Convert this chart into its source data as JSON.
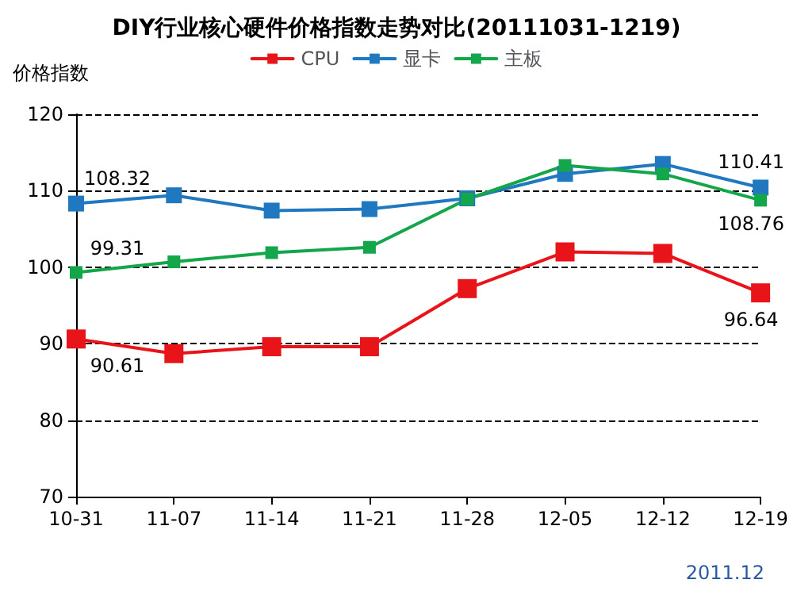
{
  "chart_data": {
    "type": "line",
    "title": "DIY行业核心硬件价格指数走势对比(20111031-1219)",
    "ylabel": "价格指数",
    "categories": [
      "10-31",
      "11-07",
      "11-14",
      "11-21",
      "11-28",
      "12-05",
      "12-12",
      "12-19"
    ],
    "series": [
      {
        "name": "CPU",
        "color": "#e8141a",
        "values": [
          90.61,
          88.7,
          89.6,
          89.6,
          97.2,
          102.0,
          101.8,
          96.64
        ],
        "value_labels": [
          "90.61",
          null,
          null,
          null,
          null,
          null,
          null,
          "96.64"
        ]
      },
      {
        "name": "显卡",
        "color": "#1f78c0",
        "values": [
          108.32,
          109.4,
          107.4,
          107.6,
          109.0,
          112.2,
          113.5,
          110.41
        ],
        "value_labels": [
          "108.32",
          null,
          null,
          null,
          null,
          null,
          null,
          "110.41"
        ]
      },
      {
        "name": "主板",
        "color": "#13a64a",
        "values": [
          99.31,
          100.7,
          101.9,
          102.6,
          108.9,
          113.3,
          112.2,
          108.76
        ],
        "value_labels": [
          "99.31",
          null,
          null,
          null,
          null,
          null,
          null,
          "108.76"
        ]
      }
    ],
    "ylim": [
      70,
      120
    ],
    "yticks": [
      70,
      80,
      90,
      100,
      110,
      120
    ],
    "grid": "y",
    "legend": "top",
    "marker": "square",
    "line_style": "solid",
    "annotations": [
      "2011.12"
    ]
  }
}
